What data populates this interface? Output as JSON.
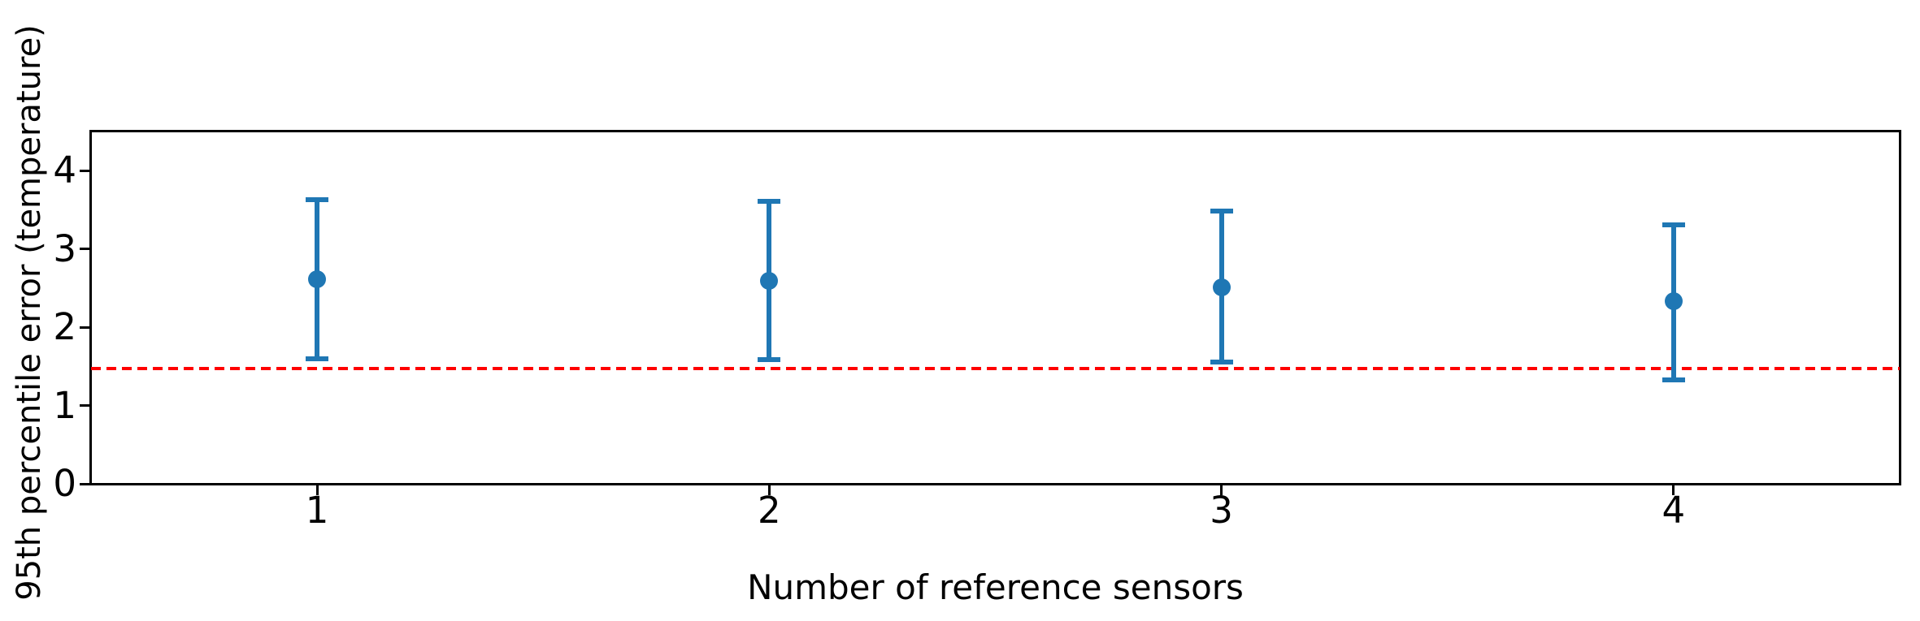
{
  "figure": {
    "background": "#ffffff",
    "text_color": "#000000",
    "spine_color": "#000000"
  },
  "chart_data": {
    "type": "scatter",
    "subtype": "errorbar",
    "title": "",
    "xlabel": "Number of reference sensors",
    "ylabel": "95th percentile error (temperature)",
    "x": [
      1,
      2,
      3,
      4
    ],
    "series": [
      {
        "name": "95th percentile error",
        "y": [
          2.61,
          2.59,
          2.51,
          2.33
        ],
        "err_upper": [
          1.02,
          1.02,
          0.97,
          0.98
        ],
        "err_lower": [
          1.01,
          1.0,
          0.95,
          1.0
        ],
        "color": "#1f77b4",
        "marker": "circle"
      }
    ],
    "reference_line": {
      "y": 1.47,
      "color": "#ff0000",
      "style": "dashed"
    },
    "xlim": [
      0.5,
      4.5
    ],
    "ylim": [
      0,
      4.5
    ],
    "x_ticks": [
      1,
      2,
      3,
      4
    ],
    "x_tick_labels": [
      "1",
      "2",
      "3",
      "4"
    ],
    "y_ticks": [
      0,
      1,
      2,
      3,
      4
    ],
    "y_tick_labels": [
      "0",
      "1",
      "2",
      "3",
      "4"
    ],
    "grid": false,
    "legend": null
  }
}
